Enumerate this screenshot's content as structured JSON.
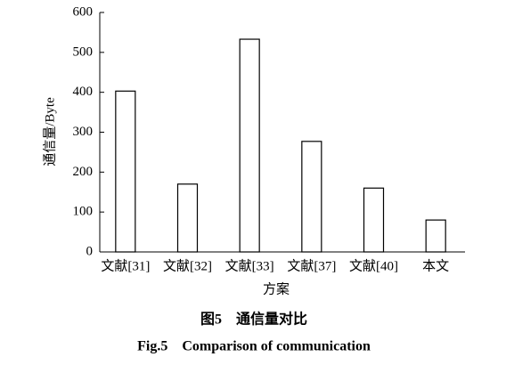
{
  "chart_data": {
    "type": "bar",
    "title": "图5　通信量对比",
    "subtitle": "Fig.5　Comparison of communication",
    "x_label": "方案",
    "y_label": "通信量/Byte",
    "categories": [
      "文献[31]",
      "文献[32]",
      "文献[33]",
      "文献[37]",
      "文献[40]",
      "本文"
    ],
    "values": [
      403,
      170,
      533,
      277,
      160,
      80
    ],
    "color": "#ffffff",
    "ylim": [
      0,
      600
    ],
    "yticks": [
      0,
      100,
      200,
      300,
      400,
      500,
      600
    ],
    "grid": false
  }
}
